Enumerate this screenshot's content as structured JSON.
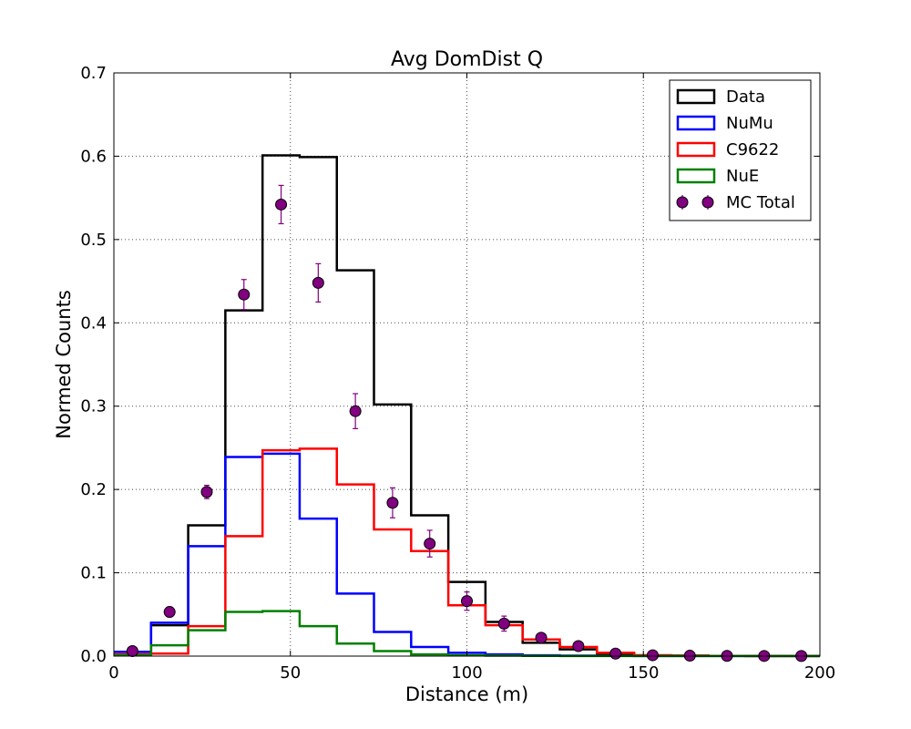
{
  "chart_data": {
    "type": "histogram",
    "title": "Avg DomDist Q",
    "xlabel": "Distance (m)",
    "ylabel": "Normed Counts",
    "xlim": [
      0,
      200
    ],
    "ylim": [
      0,
      0.7
    ],
    "xticks": [
      "0",
      "50",
      "100",
      "150",
      "200"
    ],
    "yticks": [
      "0.0",
      "0.1",
      "0.2",
      "0.3",
      "0.4",
      "0.5",
      "0.6",
      "0.7"
    ],
    "grid": true,
    "legend_position": "top-right",
    "bin_edges": [
      0,
      10.53,
      21.05,
      31.58,
      42.11,
      52.63,
      63.16,
      73.68,
      84.21,
      94.74,
      105.26,
      115.79,
      126.32,
      136.84,
      147.37,
      157.89,
      168.42,
      178.95,
      189.47,
      200
    ],
    "series": [
      {
        "name": "Data",
        "color": "#000000",
        "style": "step",
        "values": [
          0.005,
          0.037,
          0.157,
          0.415,
          0.601,
          0.599,
          0.463,
          0.302,
          0.169,
          0.089,
          0.041,
          0.016,
          0.008,
          0.003,
          0.001,
          0.0005,
          0.0003,
          0.0002,
          0.0001
        ]
      },
      {
        "name": "NuMu",
        "color": "#0000ff",
        "style": "step",
        "values": [
          0.005,
          0.04,
          0.132,
          0.239,
          0.243,
          0.165,
          0.075,
          0.029,
          0.011,
          0.004,
          0.002,
          0.001,
          0.0005,
          0.0003,
          0.0002,
          0.0001,
          0.0001,
          0.0001,
          0.0001
        ]
      },
      {
        "name": "C9622",
        "color": "#ff0000",
        "style": "step",
        "values": [
          0.002,
          0.003,
          0.036,
          0.144,
          0.247,
          0.249,
          0.206,
          0.152,
          0.126,
          0.061,
          0.037,
          0.02,
          0.011,
          0.004,
          0.001,
          0.0005,
          0.0003,
          0.0002,
          0.0001
        ]
      },
      {
        "name": "NuE",
        "color": "#008000",
        "style": "step",
        "values": [
          0.001,
          0.013,
          0.031,
          0.053,
          0.054,
          0.036,
          0.015,
          0.006,
          0.002,
          0.001,
          0.0005,
          0.0003,
          0.0002,
          0.0001,
          0.0001,
          0.0001,
          0.0001,
          0.0001,
          0.0001
        ]
      },
      {
        "name": "MC Total",
        "color": "#800080",
        "style": "errorbar",
        "x": [
          5.26,
          15.79,
          26.32,
          36.84,
          47.37,
          57.89,
          68.42,
          78.95,
          89.47,
          100.0,
          110.53,
          121.05,
          131.58,
          142.11,
          152.63,
          163.16,
          173.68,
          184.21,
          194.74
        ],
        "values": [
          0.006,
          0.053,
          0.197,
          0.434,
          0.542,
          0.448,
          0.294,
          0.184,
          0.135,
          0.066,
          0.039,
          0.022,
          0.012,
          0.003,
          0.001,
          0.0005,
          0.0003,
          0.0002,
          0.0001
        ],
        "errors": [
          0.002,
          0.006,
          0.008,
          0.018,
          0.023,
          0.023,
          0.021,
          0.018,
          0.016,
          0.011,
          0.009,
          0.005,
          0.003,
          0.001,
          0.0005,
          0.0003,
          0.0002,
          0.0001,
          0.0001
        ]
      }
    ]
  }
}
